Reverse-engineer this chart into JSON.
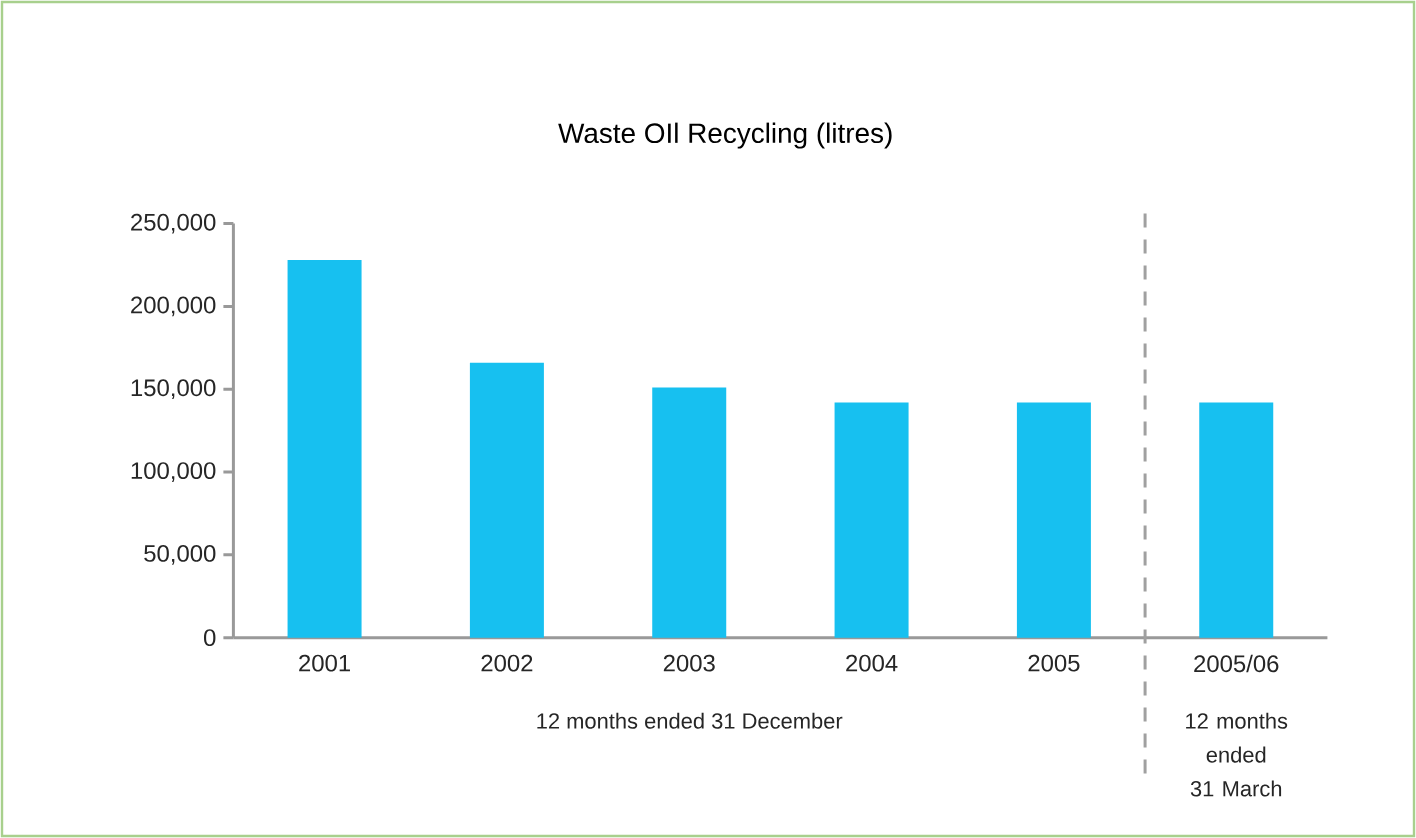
{
  "chart_data": {
    "type": "bar",
    "title": "Waste OIl Recycling (litres)",
    "categories": [
      "2001",
      "2002",
      "2003",
      "2004",
      "2005",
      "2005/06"
    ],
    "values": [
      228000,
      166000,
      151000,
      142000,
      142000,
      142000
    ],
    "color": "#17c0f0",
    "ylim": [
      0,
      250000
    ],
    "yticks": [
      {
        "value": 0,
        "label": "0"
      },
      {
        "value": 50000,
        "label": "50,000"
      },
      {
        "value": 100000,
        "label": "100,000"
      },
      {
        "value": 150000,
        "label": "150,000"
      },
      {
        "value": 200000,
        "label": "200,000"
      },
      {
        "value": 250000,
        "label": "250,000"
      }
    ],
    "grid": false,
    "annotations": [
      "12 months ended 31 December",
      "12 months\nended\n31 March"
    ]
  }
}
